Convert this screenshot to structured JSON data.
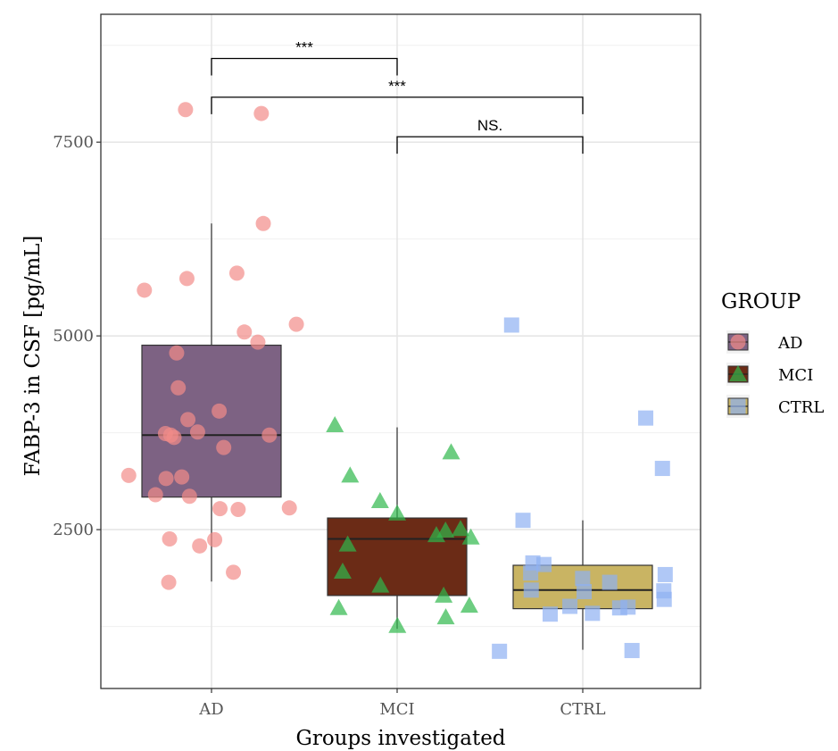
{
  "chart_data": {
    "type": "boxplot",
    "xlabel": "Groups investigated",
    "ylabel": "FABP-3 in CSF [pg/mL]",
    "categories": [
      "AD",
      "MCI",
      "CTRL"
    ],
    "ylim": [
      450,
      9150
    ],
    "y_ticks": [
      2500,
      5000,
      7500
    ],
    "y_tick_labels": [
      "2500",
      "5000",
      "7500"
    ],
    "grid": true,
    "legend": {
      "title": "GROUP",
      "position": "right",
      "items": [
        {
          "label": "AD",
          "fill": "#7d6283",
          "point_color": "#f28c89",
          "shape": "circle"
        },
        {
          "label": "MCI",
          "fill": "#6b2b16",
          "point_color": "#2fb84b",
          "shape": "triangle"
        },
        {
          "label": "CTRL",
          "fill": "#c9b463",
          "point_color": "#8fb0f2",
          "shape": "square"
        }
      ]
    },
    "boxes": [
      {
        "group": "AD",
        "min": 1830,
        "q1": 2920,
        "median": 3720,
        "q3": 4880,
        "max": 6450
      },
      {
        "group": "MCI",
        "min": 1220,
        "q1": 1650,
        "median": 2380,
        "q3": 2650,
        "max": 3820
      },
      {
        "group": "CTRL",
        "min": 950,
        "q1": 1480,
        "median": 1720,
        "q3": 2040,
        "max": 2620
      }
    ],
    "points": [
      {
        "group": "AD",
        "values": [
          7920,
          7870,
          6450,
          5810,
          5740,
          5590,
          5150,
          5050,
          4920,
          4780,
          4330,
          4030,
          3920,
          3760,
          3740,
          3720,
          3720,
          3690,
          3560,
          3200,
          3180,
          3160,
          2950,
          2930,
          2780,
          2770,
          2760,
          2380,
          2370,
          2290,
          1950,
          1820
        ]
      },
      {
        "group": "MCI",
        "values": [
          3850,
          3500,
          3200,
          2870,
          2710,
          2510,
          2490,
          2430,
          2400,
          2310,
          1960,
          1780,
          1650,
          1520,
          1490,
          1370,
          1260
        ]
      },
      {
        "group": "CTRL",
        "values": [
          5140,
          3940,
          3290,
          2620,
          2070,
          2050,
          1940,
          1920,
          1870,
          1820,
          1720,
          1710,
          1700,
          1600,
          1510,
          1500,
          1490,
          1420,
          1410,
          940,
          930
        ]
      }
    ],
    "significance": [
      {
        "from": "AD",
        "to": "MCI",
        "label": "***",
        "y": 8580
      },
      {
        "from": "AD",
        "to": "CTRL",
        "label": "***",
        "y": 8080
      },
      {
        "from": "MCI",
        "to": "CTRL",
        "label": "NS.",
        "y": 7570
      }
    ]
  }
}
